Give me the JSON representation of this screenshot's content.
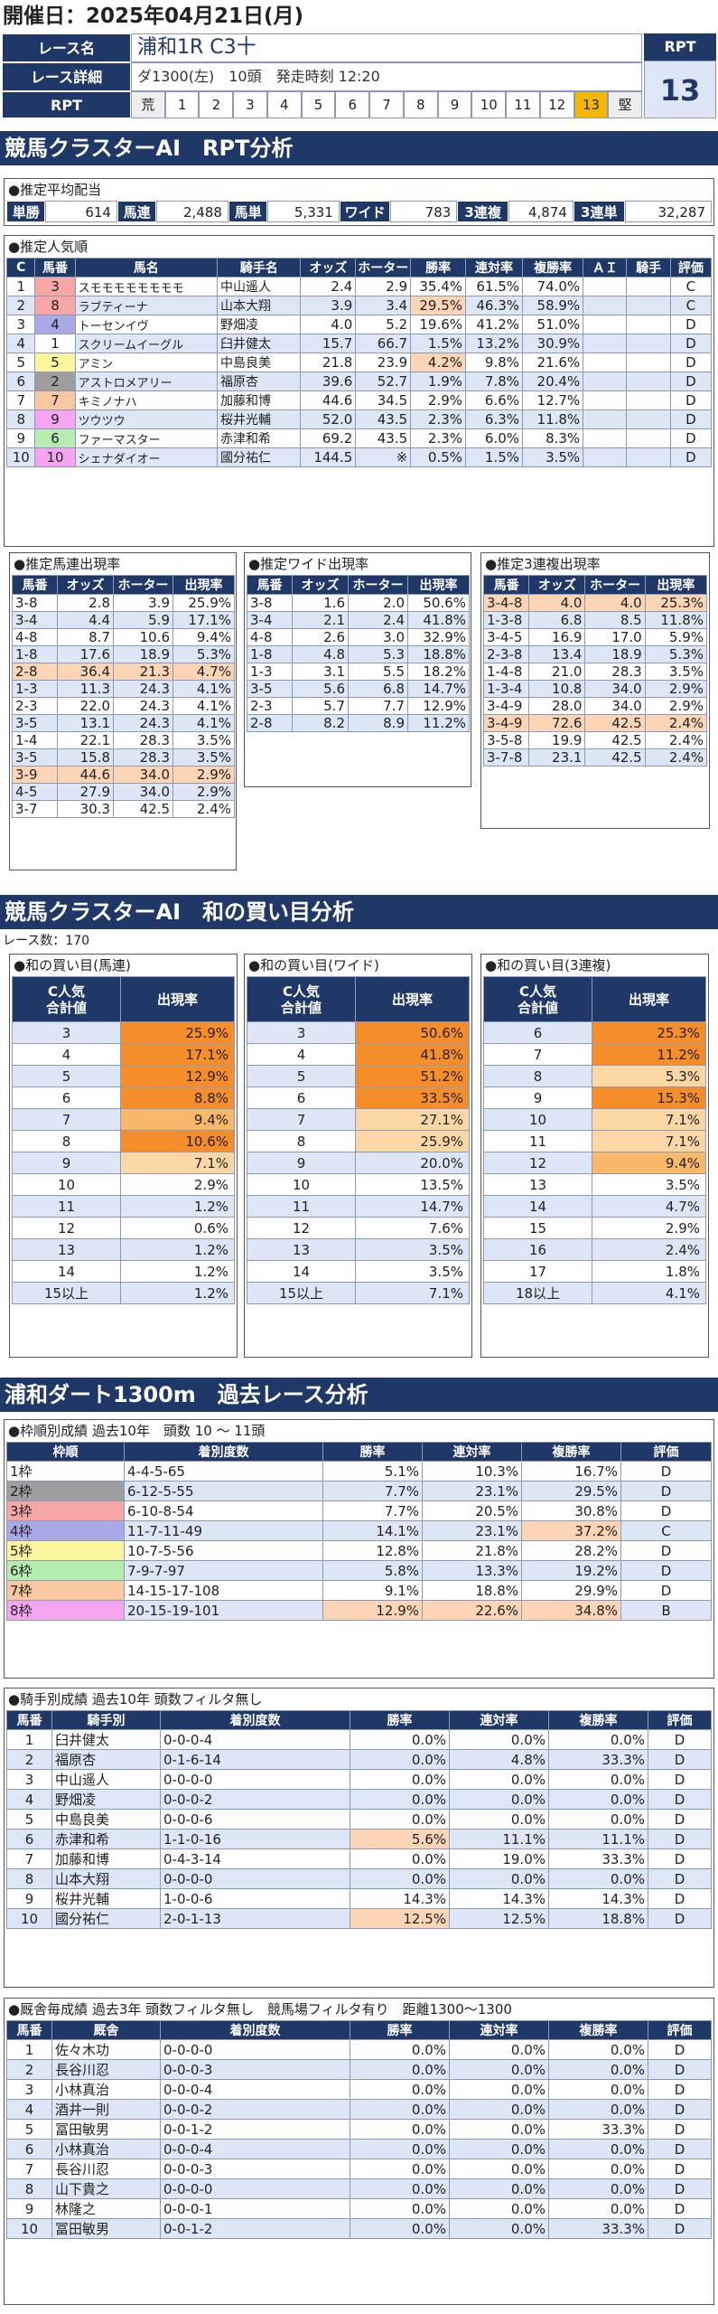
{
  "date_label": "開催日：2025年04月21日(月)",
  "header": {
    "name_label": "レース名",
    "race_name": "浦和1R C3十",
    "detail_label": "レース詳細",
    "detail": "ダ1300(左)　10頭　発走時刻 12:20",
    "rpt_label": "RPT",
    "rpt_big": "13",
    "scale": [
      {
        "t": "荒",
        "bg": "#eeeeee"
      },
      {
        "t": "1",
        "bg": "#fff"
      },
      {
        "t": "2",
        "bg": "#fff"
      },
      {
        "t": "3",
        "bg": "#fff"
      },
      {
        "t": "4",
        "bg": "#fff"
      },
      {
        "t": "5",
        "bg": "#fff"
      },
      {
        "t": "6",
        "bg": "#fff"
      },
      {
        "t": "7",
        "bg": "#fff"
      },
      {
        "t": "8",
        "bg": "#fff"
      },
      {
        "t": "9",
        "bg": "#fff"
      },
      {
        "t": "10",
        "bg": "#fff"
      },
      {
        "t": "11",
        "bg": "#fff"
      },
      {
        "t": "12",
        "bg": "#fff"
      },
      {
        "t": "13",
        "bg": "#f5b800"
      },
      {
        "t": "堅",
        "bg": "#eeeeee"
      }
    ]
  },
  "s1_title": "競馬クラスターAI　RPT分析",
  "payout": {
    "title": "●推定平均配当",
    "items": [
      {
        "k": "単勝",
        "v": "614"
      },
      {
        "k": "馬連",
        "v": "2,488"
      },
      {
        "k": "馬単",
        "v": "5,331"
      },
      {
        "k": "ワイド",
        "v": "783"
      },
      {
        "k": "3連複",
        "v": "4,874"
      },
      {
        "k": "3連単",
        "v": "32,287"
      }
    ]
  },
  "popularity": {
    "title": "●推定人気順",
    "headers": [
      "C",
      "馬番",
      "馬名",
      "騎手名",
      "オッズ",
      "ホーター",
      "勝率",
      "連対率",
      "複勝率",
      "ＡＩ",
      "騎手",
      "評価"
    ],
    "rows": [
      {
        "c": "1",
        "no": "3",
        "nbg": "#f7a6a6",
        "name": "スモモモモモモモモ",
        "jockey": "中山遥人",
        "odds": "2.4",
        "hoter": "2.9",
        "win": "35.4%",
        "ren": "61.5%",
        "fuku": "74.0%",
        "ai": "",
        "kj": "",
        "grade": "C",
        "winhl": false
      },
      {
        "c": "2",
        "no": "8",
        "nbg": "#f7a6a6",
        "name": "ラブティーナ",
        "jockey": "山本大翔",
        "odds": "3.9",
        "hoter": "3.4",
        "win": "29.5%",
        "ren": "46.3%",
        "fuku": "58.9%",
        "ai": "",
        "kj": "",
        "grade": "C",
        "winhl": true
      },
      {
        "c": "3",
        "no": "4",
        "nbg": "#a9a9e8",
        "name": "トーセンイヴ",
        "jockey": "野畑凌",
        "odds": "4.0",
        "hoter": "5.2",
        "win": "19.6%",
        "ren": "41.2%",
        "fuku": "51.0%",
        "ai": "",
        "kj": "",
        "grade": "D",
        "winhl": false
      },
      {
        "c": "4",
        "no": "1",
        "nbg": "#ffffff",
        "name": "スクリームイーグル",
        "jockey": "臼井健太",
        "odds": "15.7",
        "hoter": "66.7",
        "win": "1.5%",
        "ren": "13.2%",
        "fuku": "30.9%",
        "ai": "",
        "kj": "",
        "grade": "D",
        "winhl": false
      },
      {
        "c": "5",
        "no": "5",
        "nbg": "#fbf59c",
        "name": "アミン",
        "jockey": "中島良美",
        "odds": "21.8",
        "hoter": "23.9",
        "win": "4.2%",
        "ren": "9.8%",
        "fuku": "21.6%",
        "ai": "",
        "kj": "",
        "grade": "D",
        "winhl": true
      },
      {
        "c": "6",
        "no": "2",
        "nbg": "#9e9e9e",
        "name": "アストロメアリー",
        "jockey": "福原杏",
        "odds": "39.6",
        "hoter": "52.7",
        "win": "1.9%",
        "ren": "7.8%",
        "fuku": "20.4%",
        "ai": "",
        "kj": "",
        "grade": "D",
        "winhl": false
      },
      {
        "c": "7",
        "no": "7",
        "nbg": "#f9c8a0",
        "name": "キミノナハ",
        "jockey": "加藤和博",
        "odds": "44.6",
        "hoter": "34.5",
        "win": "2.9%",
        "ren": "6.6%",
        "fuku": "12.7%",
        "ai": "",
        "kj": "",
        "grade": "D",
        "winhl": false
      },
      {
        "c": "8",
        "no": "9",
        "nbg": "#f5a5f0",
        "name": "ツウツウ",
        "jockey": "桜井光輔",
        "odds": "52.0",
        "hoter": "43.5",
        "win": "2.3%",
        "ren": "6.3%",
        "fuku": "11.8%",
        "ai": "",
        "kj": "",
        "grade": "D",
        "winhl": false
      },
      {
        "c": "9",
        "no": "6",
        "nbg": "#b5ecb0",
        "name": "ファーマスター",
        "jockey": "赤津和希",
        "odds": "69.2",
        "hoter": "43.5",
        "win": "2.3%",
        "ren": "6.0%",
        "fuku": "8.3%",
        "ai": "",
        "kj": "",
        "grade": "D",
        "winhl": false
      },
      {
        "c": "10",
        "no": "10",
        "nbg": "#f5a5f0",
        "name": "シェナダイオー",
        "jockey": "國分祐仁",
        "odds": "144.5",
        "hoter": "※",
        "win": "0.5%",
        "ren": "1.5%",
        "fuku": "3.5%",
        "ai": "",
        "kj": "",
        "grade": "D",
        "winhl": false
      }
    ]
  },
  "umaren": {
    "title": "●推定馬連出現率",
    "headers": [
      "馬番",
      "オッズ",
      "ホーター",
      "出現率"
    ],
    "rows": [
      {
        "k": "3-8",
        "a": "2.8",
        "b": "3.9",
        "p": "25.9%",
        "hl": false
      },
      {
        "k": "3-4",
        "a": "4.4",
        "b": "5.9",
        "p": "17.1%",
        "hl": false
      },
      {
        "k": "4-8",
        "a": "8.7",
        "b": "10.6",
        "p": "9.4%",
        "hl": false
      },
      {
        "k": "1-8",
        "a": "17.6",
        "b": "18.9",
        "p": "5.3%",
        "hl": false
      },
      {
        "k": "2-8",
        "a": "36.4",
        "b": "21.3",
        "p": "4.7%",
        "hl": true
      },
      {
        "k": "1-3",
        "a": "11.3",
        "b": "24.3",
        "p": "4.1%",
        "hl": false
      },
      {
        "k": "2-3",
        "a": "22.0",
        "b": "24.3",
        "p": "4.1%",
        "hl": false
      },
      {
        "k": "3-5",
        "a": "13.1",
        "b": "24.3",
        "p": "4.1%",
        "hl": false
      },
      {
        "k": "1-4",
        "a": "22.1",
        "b": "28.3",
        "p": "3.5%",
        "hl": false
      },
      {
        "k": "3-5",
        "a": "15.8",
        "b": "28.3",
        "p": "3.5%",
        "hl": false
      },
      {
        "k": "3-9",
        "a": "44.6",
        "b": "34.0",
        "p": "2.9%",
        "hl": true
      },
      {
        "k": "4-5",
        "a": "27.9",
        "b": "34.0",
        "p": "2.9%",
        "hl": false
      },
      {
        "k": "3-7",
        "a": "30.3",
        "b": "42.5",
        "p": "2.4%",
        "hl": false
      }
    ]
  },
  "wide": {
    "title": "●推定ワイド出現率",
    "headers": [
      "馬番",
      "オッズ",
      "ホーター",
      "出現率"
    ],
    "rows": [
      {
        "k": "3-8",
        "a": "1.6",
        "b": "2.0",
        "p": "50.6%",
        "hl": false
      },
      {
        "k": "3-4",
        "a": "2.1",
        "b": "2.4",
        "p": "41.8%",
        "hl": false
      },
      {
        "k": "4-8",
        "a": "2.6",
        "b": "3.0",
        "p": "32.9%",
        "hl": false
      },
      {
        "k": "1-8",
        "a": "4.8",
        "b": "5.3",
        "p": "18.8%",
        "hl": false
      },
      {
        "k": "1-3",
        "a": "3.1",
        "b": "5.5",
        "p": "18.2%",
        "hl": false
      },
      {
        "k": "3-5",
        "a": "5.6",
        "b": "6.8",
        "p": "14.7%",
        "hl": false
      },
      {
        "k": "2-3",
        "a": "5.7",
        "b": "7.7",
        "p": "12.9%",
        "hl": false
      },
      {
        "k": "2-8",
        "a": "8.2",
        "b": "8.9",
        "p": "11.2%",
        "hl": false
      }
    ]
  },
  "sanrenpuku": {
    "title": "●推定3連複出現率",
    "headers": [
      "馬番",
      "オッズ",
      "ホーター",
      "出現率"
    ],
    "rows": [
      {
        "k": "3-4-8",
        "a": "4.0",
        "b": "4.0",
        "p": "25.3%",
        "hl": true
      },
      {
        "k": "1-3-8",
        "a": "6.8",
        "b": "8.5",
        "p": "11.8%",
        "hl": false
      },
      {
        "k": "3-4-5",
        "a": "16.9",
        "b": "17.0",
        "p": "5.9%",
        "hl": false
      },
      {
        "k": "2-3-8",
        "a": "13.4",
        "b": "18.9",
        "p": "5.3%",
        "hl": false
      },
      {
        "k": "1-4-8",
        "a": "21.0",
        "b": "28.3",
        "p": "3.5%",
        "hl": false
      },
      {
        "k": "1-3-4",
        "a": "10.8",
        "b": "34.0",
        "p": "2.9%",
        "hl": false
      },
      {
        "k": "3-4-9",
        "a": "28.0",
        "b": "34.0",
        "p": "2.9%",
        "hl": false
      },
      {
        "k": "3-4-9",
        "a": "72.6",
        "b": "42.5",
        "p": "2.4%",
        "hl": true
      },
      {
        "k": "3-5-8",
        "a": "19.9",
        "b": "42.5",
        "p": "2.4%",
        "hl": false
      },
      {
        "k": "3-7-8",
        "a": "23.1",
        "b": "42.5",
        "p": "2.4%",
        "hl": false
      }
    ]
  },
  "s2_title": "競馬クラスターAI　和の買い目分析",
  "race_count": "レース数：170",
  "sum_tables": [
    {
      "title": "●和の買い目(馬連)",
      "h1": "C人気\n合計値",
      "h2": "出現率",
      "rows": [
        {
          "k": "3",
          "p": "25.9%",
          "c": "h1"
        },
        {
          "k": "4",
          "p": "17.1%",
          "c": "h1"
        },
        {
          "k": "5",
          "p": "12.9%",
          "c": "h1"
        },
        {
          "k": "6",
          "p": "8.8%",
          "c": "h1"
        },
        {
          "k": "7",
          "p": "9.4%",
          "c": "h2"
        },
        {
          "k": "8",
          "p": "10.6%",
          "c": "h1"
        },
        {
          "k": "9",
          "p": "7.1%",
          "c": "h3"
        },
        {
          "k": "10",
          "p": "2.9%",
          "c": ""
        },
        {
          "k": "11",
          "p": "1.2%",
          "c": ""
        },
        {
          "k": "12",
          "p": "0.6%",
          "c": ""
        },
        {
          "k": "13",
          "p": "1.2%",
          "c": ""
        },
        {
          "k": "14",
          "p": "1.2%",
          "c": ""
        },
        {
          "k": "15以上",
          "p": "1.2%",
          "c": ""
        }
      ]
    },
    {
      "title": "●和の買い目(ワイド)",
      "h1": "C人気\n合計値",
      "h2": "出現率",
      "rows": [
        {
          "k": "3",
          "p": "50.6%",
          "c": "h1"
        },
        {
          "k": "4",
          "p": "41.8%",
          "c": "h1"
        },
        {
          "k": "5",
          "p": "51.2%",
          "c": "h1"
        },
        {
          "k": "6",
          "p": "33.5%",
          "c": "h1"
        },
        {
          "k": "7",
          "p": "27.1%",
          "c": "h3"
        },
        {
          "k": "8",
          "p": "25.9%",
          "c": "h3"
        },
        {
          "k": "9",
          "p": "20.0%",
          "c": ""
        },
        {
          "k": "10",
          "p": "13.5%",
          "c": ""
        },
        {
          "k": "11",
          "p": "14.7%",
          "c": ""
        },
        {
          "k": "12",
          "p": "7.6%",
          "c": ""
        },
        {
          "k": "13",
          "p": "3.5%",
          "c": ""
        },
        {
          "k": "14",
          "p": "3.5%",
          "c": ""
        },
        {
          "k": "15以上",
          "p": "7.1%",
          "c": ""
        }
      ]
    },
    {
      "title": "●和の買い目(3連複)",
      "h1": "C人気\n合計値",
      "h2": "出現率",
      "rows": [
        {
          "k": "6",
          "p": "25.3%",
          "c": "h1"
        },
        {
          "k": "7",
          "p": "11.2%",
          "c": "h1"
        },
        {
          "k": "8",
          "p": "5.3%",
          "c": "h3"
        },
        {
          "k": "9",
          "p": "15.3%",
          "c": "h1"
        },
        {
          "k": "10",
          "p": "7.1%",
          "c": "h3"
        },
        {
          "k": "11",
          "p": "7.1%",
          "c": "h3"
        },
        {
          "k": "12",
          "p": "9.4%",
          "c": "h2"
        },
        {
          "k": "13",
          "p": "3.5%",
          "c": ""
        },
        {
          "k": "14",
          "p": "4.7%",
          "c": ""
        },
        {
          "k": "15",
          "p": "2.9%",
          "c": ""
        },
        {
          "k": "16",
          "p": "2.4%",
          "c": ""
        },
        {
          "k": "17",
          "p": "1.8%",
          "c": ""
        },
        {
          "k": "18以上",
          "p": "4.1%",
          "c": ""
        }
      ]
    }
  ],
  "s3_title": "浦和ダート1300m　過去レース分析",
  "waku": {
    "title": "●枠順別成績 過去10年　頭数 10 ～ 11頭",
    "headers": [
      "枠順",
      "着別度数",
      "勝率",
      "連対率",
      "複勝率",
      "評価"
    ],
    "rows": [
      {
        "k": "1枠",
        "kbg": "#ffffff",
        "d": "4-4-5-65",
        "w": "5.1%",
        "r": "10.3%",
        "f": "16.7%",
        "g": "D",
        "hw": false,
        "hr": false,
        "hf": false
      },
      {
        "k": "2枠",
        "kbg": "#9e9e9e",
        "d": "6-12-5-55",
        "w": "7.7%",
        "r": "23.1%",
        "f": "29.5%",
        "g": "D",
        "hw": false,
        "hr": false,
        "hf": false
      },
      {
        "k": "3枠",
        "kbg": "#f7a6a6",
        "d": "6-10-8-54",
        "w": "7.7%",
        "r": "20.5%",
        "f": "30.8%",
        "g": "D",
        "hw": false,
        "hr": false,
        "hf": false
      },
      {
        "k": "4枠",
        "kbg": "#a9a9e8",
        "d": "11-7-11-49",
        "w": "14.1%",
        "r": "23.1%",
        "f": "37.2%",
        "g": "C",
        "hw": false,
        "hr": false,
        "hf": true
      },
      {
        "k": "5枠",
        "kbg": "#fbf59c",
        "d": "10-7-5-56",
        "w": "12.8%",
        "r": "21.8%",
        "f": "28.2%",
        "g": "D",
        "hw": false,
        "hr": false,
        "hf": false
      },
      {
        "k": "6枠",
        "kbg": "#b5ecb0",
        "d": "7-9-7-97",
        "w": "5.8%",
        "r": "13.3%",
        "f": "19.2%",
        "g": "D",
        "hw": false,
        "hr": false,
        "hf": false
      },
      {
        "k": "7枠",
        "kbg": "#f9c8a0",
        "d": "14-15-17-108",
        "w": "9.1%",
        "r": "18.8%",
        "f": "29.9%",
        "g": "D",
        "hw": false,
        "hr": false,
        "hf": false
      },
      {
        "k": "8枠",
        "kbg": "#f5a5f0",
        "d": "20-15-19-101",
        "w": "12.9%",
        "r": "22.6%",
        "f": "34.8%",
        "g": "B",
        "hw": true,
        "hr": true,
        "hf": true
      }
    ]
  },
  "jockey": {
    "title": "●騎手別成績 過去10年 頭数フィルタ無し",
    "headers": [
      "馬番",
      "騎手別",
      "着別度数",
      "勝率",
      "連対率",
      "複勝率",
      "評価"
    ],
    "rows": [
      {
        "no": "1",
        "n": "臼井健太",
        "d": "0-0-0-4",
        "w": "0.0%",
        "r": "0.0%",
        "f": "0.0%",
        "g": "D",
        "hw": false
      },
      {
        "no": "2",
        "n": "福原杏",
        "d": "0-1-6-14",
        "w": "0.0%",
        "r": "4.8%",
        "f": "33.3%",
        "g": "D",
        "hw": false
      },
      {
        "no": "3",
        "n": "中山遥人",
        "d": "0-0-0-0",
        "w": "0.0%",
        "r": "0.0%",
        "f": "0.0%",
        "g": "D",
        "hw": false
      },
      {
        "no": "4",
        "n": "野畑凌",
        "d": "0-0-0-2",
        "w": "0.0%",
        "r": "0.0%",
        "f": "0.0%",
        "g": "D",
        "hw": false
      },
      {
        "no": "5",
        "n": "中島良美",
        "d": "0-0-0-6",
        "w": "0.0%",
        "r": "0.0%",
        "f": "0.0%",
        "g": "D",
        "hw": false
      },
      {
        "no": "6",
        "n": "赤津和希",
        "d": "1-1-0-16",
        "w": "5.6%",
        "r": "11.1%",
        "f": "11.1%",
        "g": "D",
        "hw": true
      },
      {
        "no": "7",
        "n": "加藤和博",
        "d": "0-4-3-14",
        "w": "0.0%",
        "r": "19.0%",
        "f": "33.3%",
        "g": "D",
        "hw": false
      },
      {
        "no": "8",
        "n": "山本大翔",
        "d": "0-0-0-0",
        "w": "0.0%",
        "r": "0.0%",
        "f": "0.0%",
        "g": "D",
        "hw": false
      },
      {
        "no": "9",
        "n": "桜井光輔",
        "d": "1-0-0-6",
        "w": "14.3%",
        "r": "14.3%",
        "f": "14.3%",
        "g": "D",
        "hw": false
      },
      {
        "no": "10",
        "n": "國分祐仁",
        "d": "2-0-1-13",
        "w": "12.5%",
        "r": "12.5%",
        "f": "18.8%",
        "g": "D",
        "hw": true
      }
    ]
  },
  "stable": {
    "title": "●厩舎毎成績 過去3年 頭数フィルタ無し　競馬場フィルタ有り　距離1300～1300",
    "headers": [
      "馬番",
      "厩舎",
      "着別度数",
      "勝率",
      "連対率",
      "複勝率",
      "評価"
    ],
    "rows": [
      {
        "no": "1",
        "n": "佐々木功",
        "d": "0-0-0-0",
        "w": "0.0%",
        "r": "0.0%",
        "f": "0.0%",
        "g": "D"
      },
      {
        "no": "2",
        "n": "長谷川忍",
        "d": "0-0-0-3",
        "w": "0.0%",
        "r": "0.0%",
        "f": "0.0%",
        "g": "D"
      },
      {
        "no": "3",
        "n": "小林真治",
        "d": "0-0-0-4",
        "w": "0.0%",
        "r": "0.0%",
        "f": "0.0%",
        "g": "D"
      },
      {
        "no": "4",
        "n": "酒井一則",
        "d": "0-0-0-2",
        "w": "0.0%",
        "r": "0.0%",
        "f": "0.0%",
        "g": "D"
      },
      {
        "no": "5",
        "n": "冨田敏男",
        "d": "0-0-1-2",
        "w": "0.0%",
        "r": "0.0%",
        "f": "33.3%",
        "g": "D"
      },
      {
        "no": "6",
        "n": "小林真治",
        "d": "0-0-0-4",
        "w": "0.0%",
        "r": "0.0%",
        "f": "0.0%",
        "g": "D"
      },
      {
        "no": "7",
        "n": "長谷川忍",
        "d": "0-0-0-3",
        "w": "0.0%",
        "r": "0.0%",
        "f": "0.0%",
        "g": "D"
      },
      {
        "no": "8",
        "n": "山下貴之",
        "d": "0-0-0-0",
        "w": "0.0%",
        "r": "0.0%",
        "f": "0.0%",
        "g": "D"
      },
      {
        "no": "9",
        "n": "林隆之",
        "d": "0-0-0-1",
        "w": "0.0%",
        "r": "0.0%",
        "f": "0.0%",
        "g": "D"
      },
      {
        "no": "10",
        "n": "冨田敏男",
        "d": "0-0-1-2",
        "w": "0.0%",
        "r": "0.0%",
        "f": "33.3%",
        "g": "D"
      }
    ]
  }
}
